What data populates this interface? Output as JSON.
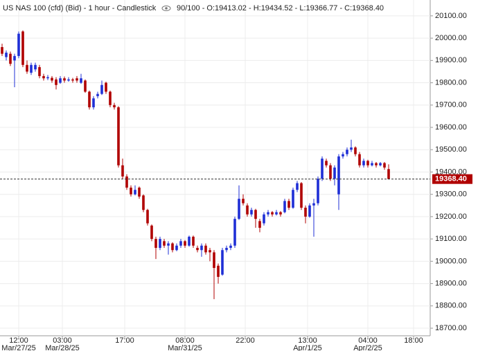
{
  "chart_data": {
    "type": "candlestick",
    "title": "US NAS 100 (cfd) (Bid) - 1 hour - Candlestick",
    "info": "90/100 - O:19413.02 - H:19434.52 - L:19366.77 - C:19368.40",
    "up_color": "#1f2fd6",
    "down_color": "#b00000",
    "grid": true,
    "x": [
      0,
      1,
      2,
      3,
      4,
      5,
      6,
      7,
      8,
      9,
      10,
      11,
      12,
      13,
      14,
      15,
      16,
      17,
      18,
      19,
      20,
      21,
      22,
      23,
      24,
      25,
      26,
      27,
      28,
      29,
      30,
      31,
      32,
      33,
      34,
      35,
      36,
      37,
      38,
      39,
      40,
      41,
      42,
      43,
      44,
      45,
      46,
      47,
      48,
      49,
      50,
      51,
      52,
      53,
      54,
      55,
      56,
      57,
      58,
      59,
      60,
      61,
      62,
      63,
      64,
      65,
      66,
      67,
      68,
      69,
      70,
      71,
      72,
      73,
      74,
      75,
      76,
      77,
      78,
      79,
      80,
      81,
      82,
      83,
      84,
      85,
      86,
      87,
      88,
      89,
      90,
      91,
      92,
      93
    ],
    "open": [
      19960,
      19915,
      19930,
      19900,
      19920,
      20030,
      19880,
      19845,
      19860,
      19870,
      19830,
      19820,
      19822,
      19815,
      19800,
      19820,
      19810,
      19815,
      19820,
      19800,
      19810,
      19760,
      19690,
      19740,
      19750,
      19800,
      19760,
      19700,
      19690,
      19430,
      19380,
      19330,
      19300,
      19330,
      19295,
      19230,
      19160,
      19100,
      19060,
      19090,
      19070,
      19080,
      19050,
      19070,
      19090,
      19070,
      19110,
      19060,
      19050,
      19070,
      19050,
      19040,
      18980,
      18940,
      19050,
      19060,
      19070,
      19190,
      19280,
      19250,
      19210,
      19230,
      19180,
      19170,
      19210,
      19220,
      19210,
      19220,
      19220,
      19270,
      19240,
      19320,
      19350,
      19240,
      19200,
      19250,
      19260,
      19370,
      19450,
      19430,
      19370,
      19300,
      19470,
      19480,
      19500,
      19510,
      19480,
      19430,
      19450,
      19430,
      19440,
      19430,
      19440,
      19413.02
    ],
    "high": [
      19975,
      19945,
      19940,
      19930,
      20030,
      20035,
      19900,
      19890,
      19890,
      19880,
      19840,
      19835,
      19830,
      19825,
      19830,
      19828,
      19825,
      19822,
      19830,
      19840,
      19815,
      19765,
      19740,
      19760,
      19810,
      19805,
      19765,
      19710,
      19695,
      19460,
      19390,
      19340,
      19340,
      19335,
      19300,
      19235,
      19165,
      19110,
      19110,
      19100,
      19090,
      19085,
      19080,
      19100,
      19095,
      19115,
      19115,
      19070,
      19080,
      19080,
      19060,
      19050,
      18990,
      19060,
      19070,
      19080,
      19200,
      19340,
      19300,
      19260,
      19240,
      19235,
      19190,
      19220,
      19230,
      19225,
      19230,
      19225,
      19280,
      19280,
      19330,
      19360,
      19355,
      19250,
      19260,
      19280,
      19380,
      19470,
      19460,
      19440,
      19430,
      19480,
      19490,
      19510,
      19545,
      19515,
      19490,
      19460,
      19455,
      19450,
      19445,
      19445,
      19445,
      19434.52
    ],
    "low": [
      19920,
      19900,
      19875,
      19780,
      19910,
      19870,
      19840,
      19835,
      19850,
      19820,
      19810,
      19812,
      19800,
      19770,
      19795,
      19800,
      19805,
      19800,
      19800,
      19795,
      19755,
      19680,
      19680,
      19730,
      19745,
      19750,
      19690,
      19680,
      19420,
      19370,
      19320,
      19290,
      19295,
      19280,
      19220,
      19160,
      19090,
      19010,
      19050,
      19060,
      19030,
      19040,
      19045,
      19060,
      19060,
      19065,
      19060,
      19040,
      19020,
      19030,
      19000,
      18830,
      18900,
      18935,
      19040,
      19050,
      19060,
      19185,
      19250,
      19200,
      19200,
      19150,
      19130,
      19160,
      19200,
      19200,
      19205,
      19200,
      19215,
      19230,
      19235,
      19310,
      19230,
      19170,
      19195,
      19110,
      19250,
      19360,
      19420,
      19360,
      19340,
      19230,
      19460,
      19470,
      19490,
      19470,
      19420,
      19420,
      19420,
      19425,
      19420,
      19425,
      19410,
      19366.77
    ],
    "close": [
      19930,
      19935,
      19885,
      19920,
      20020,
      19880,
      19850,
      19880,
      19880,
      19830,
      19820,
      19825,
      19810,
      19790,
      19820,
      19810,
      19815,
      19810,
      19810,
      19820,
      19760,
      19690,
      19730,
      19750,
      19790,
      19760,
      19700,
      19690,
      19430,
      19380,
      19330,
      19300,
      19320,
      19290,
      19230,
      19170,
      19100,
      19060,
      19100,
      19070,
      19080,
      19050,
      19070,
      19090,
      19070,
      19110,
      19070,
      19050,
      19070,
      19040,
      19040,
      18970,
      18930,
      19050,
      19060,
      19070,
      19190,
      19280,
      19260,
      19210,
      19230,
      19190,
      19150,
      19210,
      19220,
      19210,
      19220,
      19210,
      19270,
      19240,
      19320,
      19350,
      19240,
      19200,
      19250,
      19260,
      19370,
      19460,
      19430,
      19370,
      19420,
      19470,
      19480,
      19500,
      19510,
      19480,
      19430,
      19450,
      19430,
      19440,
      19430,
      19440,
      19420,
      19368.4
    ],
    "last": {
      "value": 19368.4,
      "label": "19368.40"
    },
    "xlim": [
      -0.5,
      103
    ],
    "xticks": [
      {
        "value": 4,
        "label": "12:00",
        "date": "Mar/27/25"
      },
      {
        "value": 14.5,
        "label": "03:00",
        "date": "Mar/28/25"
      },
      {
        "value": 29.5,
        "label": "17:00"
      },
      {
        "value": 44,
        "label": "08:00",
        "date": "Mar/31/25"
      },
      {
        "value": 58.5,
        "label": "22:00"
      },
      {
        "value": 73.5,
        "label": "13:00",
        "date": "Apr/1/25"
      },
      {
        "value": 88,
        "label": "04:00",
        "date": "Apr/2/25"
      },
      {
        "value": 99,
        "label": "18:00"
      }
    ],
    "ylim": [
      18666,
      20171
    ],
    "yticks": [
      {
        "value": 18700,
        "label": "18700.00"
      },
      {
        "value": 18800,
        "label": "18800.00"
      },
      {
        "value": 18900,
        "label": "18900.00"
      },
      {
        "value": 19000,
        "label": "19000.00"
      },
      {
        "value": 19100,
        "label": "19100.00"
      },
      {
        "value": 19200,
        "label": "19200.00"
      },
      {
        "value": 19300,
        "label": "19300.00"
      },
      {
        "value": 19400,
        "label": "19400.00"
      },
      {
        "value": 19500,
        "label": "19500.00"
      },
      {
        "value": 19600,
        "label": "19600.00"
      },
      {
        "value": 19700,
        "label": "19700.00"
      },
      {
        "value": 19800,
        "label": "19800.00"
      },
      {
        "value": 19900,
        "label": "19900.00"
      },
      {
        "value": 20000,
        "label": "20000.00"
      },
      {
        "value": 20100,
        "label": "20100.00"
      }
    ]
  }
}
